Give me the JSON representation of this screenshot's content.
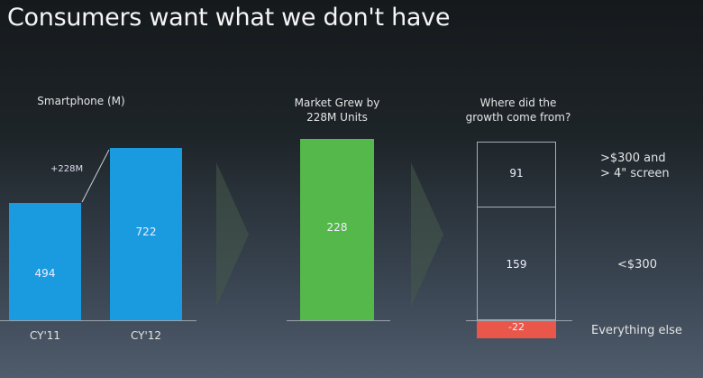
{
  "title": "Consumers want what we don't have",
  "chart_data": [
    {
      "type": "bar",
      "title": "Smartphone (M)",
      "categories": [
        "CY'11",
        "CY'12"
      ],
      "values": [
        494,
        722
      ],
      "annotation": "+228M",
      "color": "#1a9be0"
    },
    {
      "type": "bar",
      "title": "Market Grew by 228M Units",
      "title_lines": [
        "Market Grew by",
        "228M Units"
      ],
      "values": [
        228
      ],
      "color": "#55b84a"
    },
    {
      "type": "bar",
      "stacked": true,
      "title": "Where did the growth come from?",
      "title_lines": [
        "Where did the",
        "growth come from?"
      ],
      "segments": [
        {
          "label": "<$300",
          "value": 159,
          "value_label": "159"
        },
        {
          "label_lines": [
            ">$300 and",
            "> 4\" screen"
          ],
          "label": ">$300 and > 4\" screen",
          "value": 91,
          "value_label": "91"
        },
        {
          "label": "Everything else",
          "value": -22,
          "value_label": "-22",
          "color": "#e9574a"
        }
      ]
    }
  ]
}
